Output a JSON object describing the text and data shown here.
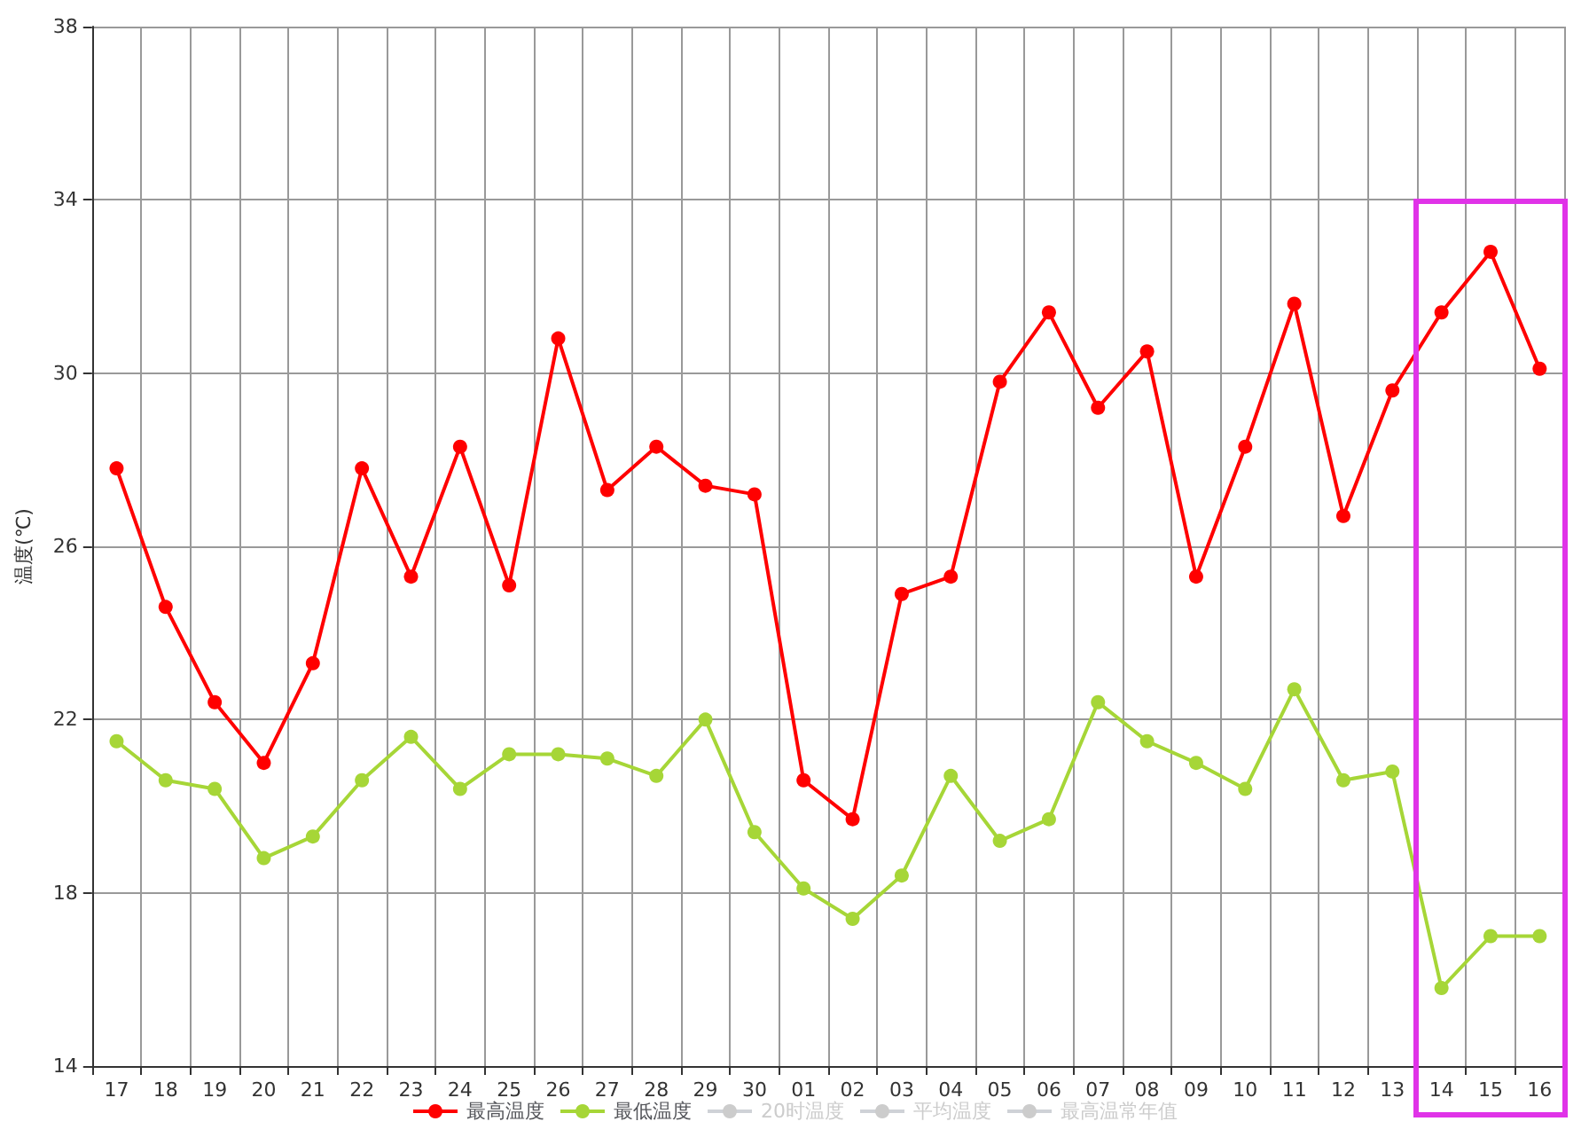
{
  "chart_data": {
    "type": "line",
    "ylabel": "温度(℃)",
    "categories": [
      "17",
      "18",
      "19",
      "20",
      "21",
      "22",
      "23",
      "24",
      "25",
      "26",
      "27",
      "28",
      "29",
      "30",
      "01",
      "02",
      "03",
      "04",
      "05",
      "06",
      "07",
      "08",
      "09",
      "10",
      "11",
      "12",
      "13",
      "14",
      "15",
      "16"
    ],
    "series": [
      {
        "name": "最高温度",
        "color": "#ff0000",
        "values": [
          27.8,
          24.6,
          22.4,
          21.0,
          23.3,
          27.8,
          25.3,
          28.3,
          25.1,
          30.8,
          27.3,
          28.3,
          27.4,
          27.2,
          20.6,
          19.7,
          24.9,
          25.3,
          29.8,
          31.4,
          29.2,
          30.5,
          25.3,
          28.3,
          31.6,
          26.7,
          29.6,
          31.4,
          32.8,
          30.1
        ]
      },
      {
        "name": "最低温度",
        "color": "#a6d637",
        "values": [
          21.5,
          20.6,
          20.4,
          18.8,
          19.3,
          20.6,
          21.6,
          20.4,
          21.2,
          21.2,
          21.1,
          20.7,
          22.0,
          19.4,
          18.1,
          17.4,
          18.4,
          20.7,
          19.2,
          19.7,
          22.4,
          21.5,
          21.0,
          20.4,
          22.7,
          20.6,
          20.8,
          15.8,
          17.0,
          17.0
        ]
      },
      {
        "name": "20时温度",
        "color": "#cccccc",
        "values": [
          null,
          null,
          null,
          null,
          null,
          null,
          null,
          null,
          null,
          null,
          null,
          null,
          null,
          null,
          null,
          null,
          null,
          null,
          null,
          null,
          null,
          null,
          null,
          null,
          null,
          null,
          null,
          null,
          null,
          null
        ]
      },
      {
        "name": "平均温度",
        "color": "#cccccc",
        "values": [
          null,
          null,
          null,
          null,
          null,
          null,
          null,
          null,
          null,
          null,
          null,
          null,
          null,
          null,
          null,
          null,
          null,
          null,
          null,
          null,
          null,
          null,
          null,
          null,
          null,
          null,
          null,
          null,
          null,
          null
        ]
      },
      {
        "name": "最高温常年值",
        "color": "#cccccc",
        "values": [
          null,
          null,
          null,
          null,
          null,
          null,
          null,
          null,
          null,
          null,
          null,
          null,
          null,
          null,
          null,
          null,
          null,
          null,
          null,
          null,
          null,
          null,
          null,
          null,
          null,
          null,
          null,
          null,
          null,
          null
        ]
      }
    ],
    "ylim": [
      14,
      38
    ],
    "yticks": [
      14,
      18,
      22,
      26,
      30,
      34,
      38
    ],
    "grid": true,
    "legend": "bottom",
    "marker": "circle",
    "line_style": "solid"
  }
}
